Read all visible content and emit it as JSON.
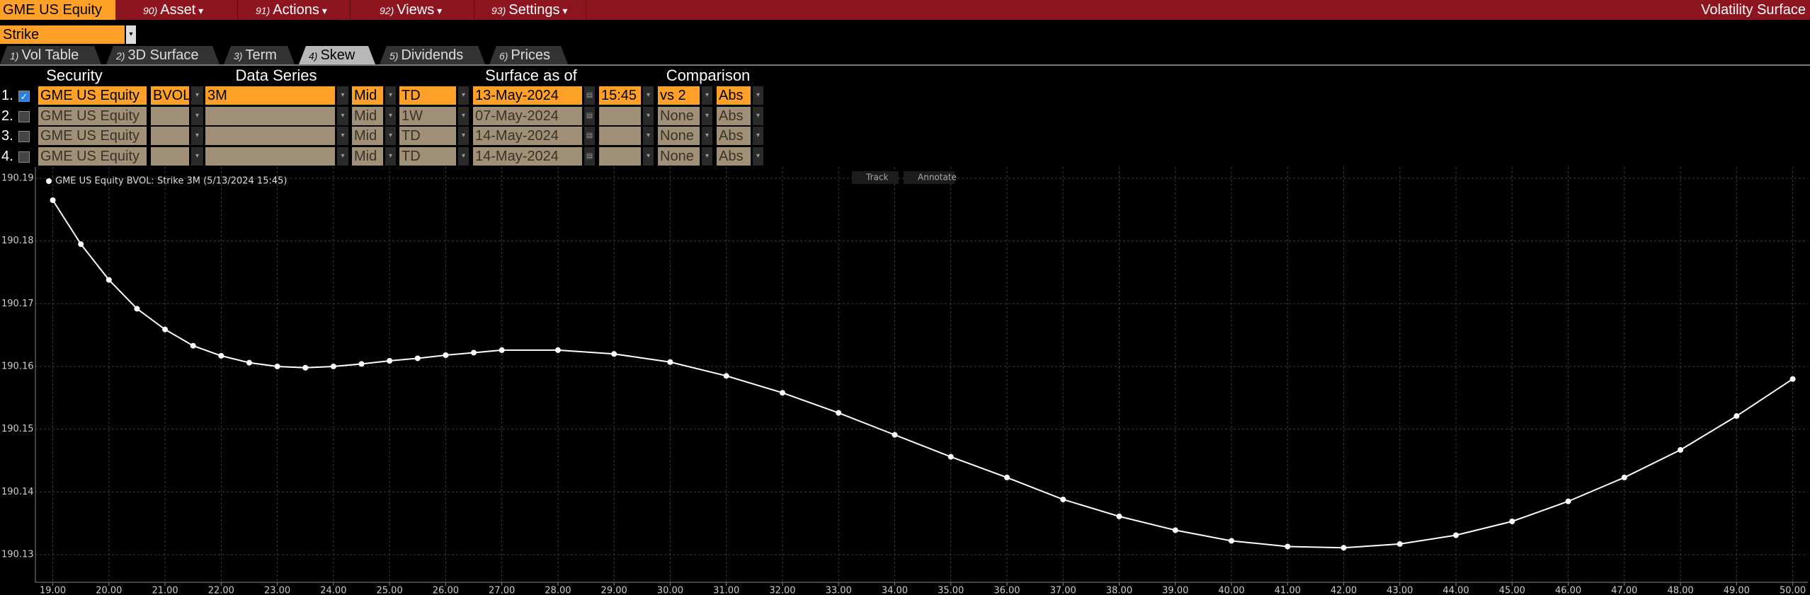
{
  "toolbar": {
    "security": "GME US Equity",
    "menus": [
      {
        "key": "90)",
        "label": "Asset"
      },
      {
        "key": "91)",
        "label": "Actions"
      },
      {
        "key": "92)",
        "label": "Views"
      },
      {
        "key": "93)",
        "label": "Settings"
      }
    ],
    "title": "Volatility Surface"
  },
  "selector": "Strike",
  "tabs": [
    {
      "key": "1)",
      "label": "Vol Table"
    },
    {
      "key": "2)",
      "label": "3D Surface"
    },
    {
      "key": "3)",
      "label": "Term"
    },
    {
      "key": "4)",
      "label": "Skew"
    },
    {
      "key": "5)",
      "label": "Dividends"
    },
    {
      "key": "6)",
      "label": "Prices"
    }
  ],
  "active_tab": 3,
  "table": {
    "headers": [
      "Security",
      "Data Series",
      "Surface as of",
      "Comparison"
    ],
    "rows": [
      {
        "index": "1.",
        "checked": true,
        "security": "GME US Equity",
        "source": "BVOL",
        "series": "3M",
        "side": "Mid",
        "mode": "TD",
        "date": "13-May-2024",
        "time": "15:45",
        "comparison": "vs 2",
        "type": "Abs"
      },
      {
        "index": "2.",
        "checked": false,
        "security": "GME US Equity",
        "side": "Mid",
        "mode": "1W",
        "date": "07-May-2024",
        "comparison": "None",
        "type": "Abs"
      },
      {
        "index": "3.",
        "checked": false,
        "security": "GME US Equity",
        "side": "Mid",
        "mode": "TD",
        "date": "14-May-2024",
        "comparison": "None",
        "type": "Abs"
      },
      {
        "index": "4.",
        "checked": false,
        "security": "GME US Equity",
        "side": "Mid",
        "mode": "TD",
        "date": "14-May-2024",
        "comparison": "None",
        "type": "Abs"
      }
    ]
  },
  "chart_tools": [
    "Track",
    "Annotate"
  ],
  "chart_data": {
    "type": "line",
    "x": [
      19,
      19.5,
      20,
      20.5,
      21,
      21.5,
      22,
      22.5,
      23,
      23.5,
      24,
      24.5,
      25,
      25.5,
      26,
      26.5,
      27,
      28,
      29,
      30,
      31,
      32,
      33,
      34,
      35,
      36,
      37,
      38,
      39,
      40,
      41,
      42,
      43,
      44,
      45,
      46,
      47,
      48,
      49,
      50
    ],
    "series": [
      {
        "name": "GME US Equity BVOL: Strike 3M (5/13/2024 15:45)",
        "color": "#ffffff",
        "values": [
          190.1865,
          190.1795,
          190.1738,
          190.1692,
          190.1659,
          190.1633,
          190.1617,
          190.1606,
          190.16,
          190.1598,
          190.16,
          190.1604,
          190.1609,
          190.1613,
          190.1618,
          190.1622,
          190.1626,
          190.1626,
          190.162,
          190.1607,
          190.1585,
          190.1558,
          190.1526,
          190.1491,
          190.1456,
          190.1423,
          190.1388,
          190.1361,
          190.1339,
          190.1322,
          190.1313,
          190.1311,
          190.1317,
          190.1331,
          190.1353,
          190.1385,
          190.1423,
          190.1467,
          190.1521,
          190.158
        ]
      }
    ],
    "xlim": [
      18.69,
      50.27
    ],
    "xticks": [
      {
        "value": 19,
        "label": "19.00"
      },
      {
        "value": 20,
        "label": "20.00"
      },
      {
        "value": 21,
        "label": "21.00"
      },
      {
        "value": 22,
        "label": "22.00"
      },
      {
        "value": 23,
        "label": "23.00"
      },
      {
        "value": 24,
        "label": "24.00"
      },
      {
        "value": 25,
        "label": "25.00"
      },
      {
        "value": 26,
        "label": "26.00"
      },
      {
        "value": 27,
        "label": "27.00"
      },
      {
        "value": 28,
        "label": "28.00"
      },
      {
        "value": 29,
        "label": "29.00"
      },
      {
        "value": 30,
        "label": "30.00"
      },
      {
        "value": 31,
        "label": "31.00"
      },
      {
        "value": 32,
        "label": "32.00"
      },
      {
        "value": 33,
        "label": "33.00"
      },
      {
        "value": 34,
        "label": "34.00"
      },
      {
        "value": 35,
        "label": "35.00"
      },
      {
        "value": 36,
        "label": "36.00"
      },
      {
        "value": 37,
        "label": "37.00"
      },
      {
        "value": 38,
        "label": "38.00"
      },
      {
        "value": 39,
        "label": "39.00"
      },
      {
        "value": 40,
        "label": "40.00"
      },
      {
        "value": 41,
        "label": "41.00"
      },
      {
        "value": 42,
        "label": "42.00"
      },
      {
        "value": 43,
        "label": "43.00"
      },
      {
        "value": 44,
        "label": "44.00"
      },
      {
        "value": 45,
        "label": "45.00"
      },
      {
        "value": 46,
        "label": "46.00"
      },
      {
        "value": 47,
        "label": "47.00"
      },
      {
        "value": 48,
        "label": "48.00"
      },
      {
        "value": 49,
        "label": "49.00"
      },
      {
        "value": 50,
        "label": "50.00"
      }
    ],
    "ylim": [
      190.1256,
      190.1918
    ],
    "yticks": [
      190.13,
      190.14,
      190.15,
      190.16,
      190.17,
      190.18,
      190.19
    ],
    "grid": true
  }
}
